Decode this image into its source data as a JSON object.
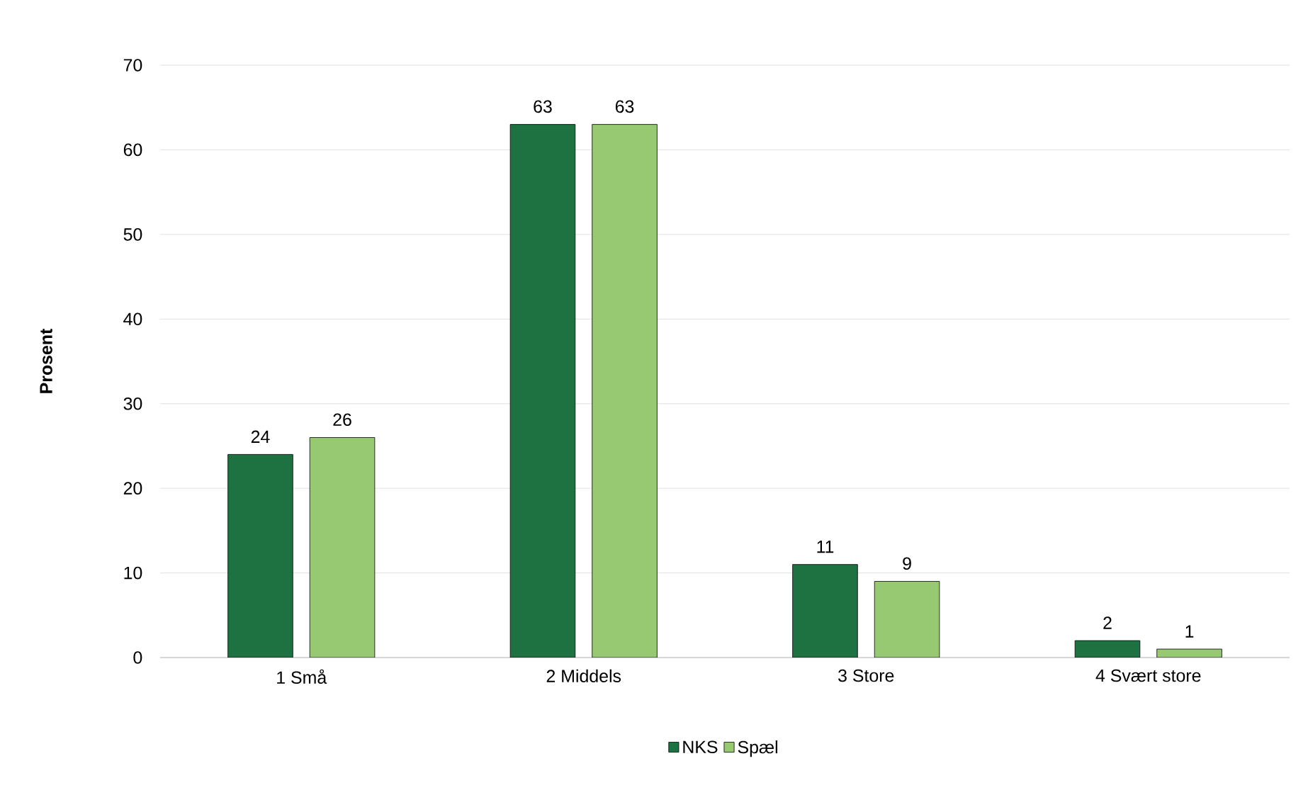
{
  "chart_data": {
    "type": "bar",
    "ylabel": "Prosent",
    "categories": [
      "1 Små",
      "2 Middels",
      "3 Store",
      "4 Svært store"
    ],
    "series": [
      {
        "name": "NKS",
        "color": "#1e7140",
        "values": [
          24,
          63,
          11,
          2
        ]
      },
      {
        "name": "Spæl",
        "color": "#97c872",
        "values": [
          26,
          63,
          9,
          1
        ]
      }
    ],
    "ylim": [
      0,
      70
    ],
    "yticks": [
      0,
      10,
      20,
      30,
      40,
      50,
      60,
      70
    ],
    "grid": "y",
    "legend": "bottom",
    "data_labels": true
  }
}
